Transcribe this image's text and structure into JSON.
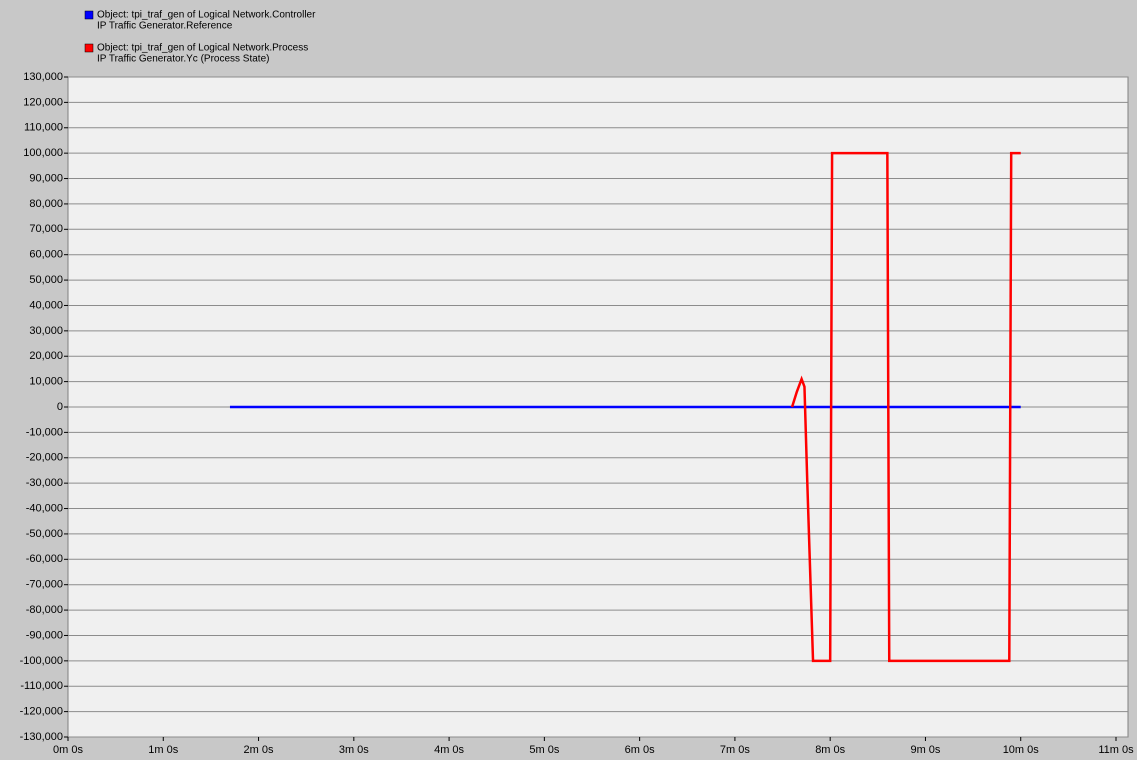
{
  "chart_data": {
    "type": "line",
    "series": [
      {
        "name": [
          "Object: tpi_traf_gen of Logical Network.Controller",
          "IP Traffic Generator.Reference"
        ],
        "color": "#0000ff",
        "x": [
          1.7,
          10.0
        ],
        "values": [
          0,
          0
        ]
      },
      {
        "name": [
          "Object: tpi_traf_gen of Logical Network.Process",
          "IP Traffic Generator.Yc (Process State)"
        ],
        "color": "#ff0000",
        "x": [
          7.6,
          7.65,
          7.7,
          7.73,
          7.76,
          7.82,
          8.0,
          8.02,
          8.6,
          8.62,
          9.88,
          9.9,
          10.0
        ],
        "values": [
          0,
          6000,
          11000,
          8000,
          -30000,
          -100000,
          -100000,
          100000,
          100000,
          -100000,
          -100000,
          100000,
          100000
        ]
      }
    ],
    "xlim": [
      0,
      11
    ],
    "xticks": [
      {
        "value": 0,
        "label": "0m 0s"
      },
      {
        "value": 1,
        "label": "1m 0s"
      },
      {
        "value": 2,
        "label": "2m 0s"
      },
      {
        "value": 3,
        "label": "3m 0s"
      },
      {
        "value": 4,
        "label": "4m 0s"
      },
      {
        "value": 5,
        "label": "5m 0s"
      },
      {
        "value": 6,
        "label": "6m 0s"
      },
      {
        "value": 7,
        "label": "7m 0s"
      },
      {
        "value": 8,
        "label": "8m 0s"
      },
      {
        "value": 9,
        "label": "9m 0s"
      },
      {
        "value": 10,
        "label": "10m 0s"
      },
      {
        "value": 11,
        "label": "11m 0s"
      }
    ],
    "ylim": [
      -130000,
      130000
    ],
    "yticks": [
      {
        "value": 130000,
        "label": "130,000"
      },
      {
        "value": 120000,
        "label": "120,000"
      },
      {
        "value": 110000,
        "label": "110,000"
      },
      {
        "value": 100000,
        "label": "100,000"
      },
      {
        "value": 90000,
        "label": "90,000"
      },
      {
        "value": 80000,
        "label": "80,000"
      },
      {
        "value": 70000,
        "label": "70,000"
      },
      {
        "value": 60000,
        "label": "60,000"
      },
      {
        "value": 50000,
        "label": "50,000"
      },
      {
        "value": 40000,
        "label": "40,000"
      },
      {
        "value": 30000,
        "label": "30,000"
      },
      {
        "value": 20000,
        "label": "20,000"
      },
      {
        "value": 10000,
        "label": "10,000"
      },
      0,
      {
        "value": -10000,
        "label": "-10,000"
      },
      {
        "value": -20000,
        "label": "-20,000"
      },
      {
        "value": -30000,
        "label": "-30,000"
      },
      {
        "value": -40000,
        "label": "-40,000"
      },
      {
        "value": -50000,
        "label": "-50,000"
      },
      {
        "value": -60000,
        "label": "-60,000"
      },
      {
        "value": -70000,
        "label": "-70,000"
      },
      {
        "value": -80000,
        "label": "-80,000"
      },
      {
        "value": -90000,
        "label": "-90,000"
      },
      {
        "value": -100000,
        "label": "-100,000"
      },
      {
        "value": -110000,
        "label": "-110,000"
      },
      {
        "value": -120000,
        "label": "-120,000"
      },
      {
        "value": -130000,
        "label": "-130,000"
      }
    ],
    "grid": true
  }
}
